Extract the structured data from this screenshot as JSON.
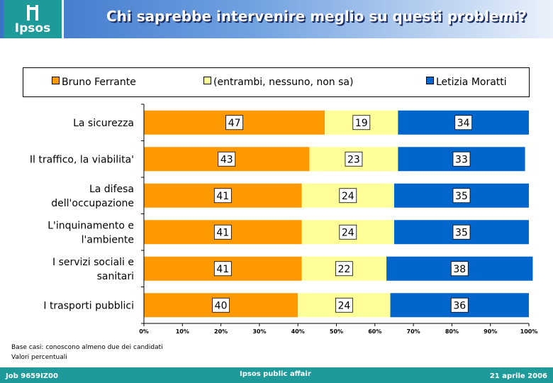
{
  "header": {
    "title": "Chi saprebbe intervenire meglio su questi problemi?",
    "logo_text": "Ipsos"
  },
  "legend": [
    {
      "label": "Bruno Ferrante",
      "color": "#ff9900"
    },
    {
      "label": "(entrambi, nessuno, non sa)",
      "color": "#ffff99"
    },
    {
      "label": "Letizia Moratti",
      "color": "#0066cc"
    }
  ],
  "chart_data": {
    "type": "bar",
    "orientation": "horizontal",
    "stacked": true,
    "categories": [
      [
        "La sicurezza"
      ],
      [
        "Il traffico, la viabilita'"
      ],
      [
        "La difesa",
        "dell'occupazione"
      ],
      [
        "L'inquinamento e",
        "l'ambiente"
      ],
      [
        "I servizi sociali e",
        "sanitari"
      ],
      [
        "I trasporti pubblici"
      ]
    ],
    "series": [
      {
        "name": "Bruno Ferrante",
        "values": [
          47,
          43,
          41,
          41,
          41,
          40
        ]
      },
      {
        "name": "(entrambi, nessuno, non sa)",
        "values": [
          19,
          23,
          24,
          24,
          22,
          24
        ]
      },
      {
        "name": "Letizia Moratti",
        "values": [
          34,
          33,
          35,
          35,
          38,
          36
        ]
      }
    ],
    "xlim": [
      0,
      100
    ],
    "xticks": [
      "0%",
      "10%",
      "20%",
      "30%",
      "40%",
      "50%",
      "60%",
      "70%",
      "80%",
      "90%",
      "100%"
    ],
    "grid": false,
    "legend_position": "top"
  },
  "notes": {
    "line1": "Base casi: conoscono almeno due dei candidati",
    "line2": "Valori percentuali"
  },
  "footer": {
    "left": "Job 9659IZ00",
    "center": "Ipsos public affair",
    "right": "21 aprile 2006"
  }
}
